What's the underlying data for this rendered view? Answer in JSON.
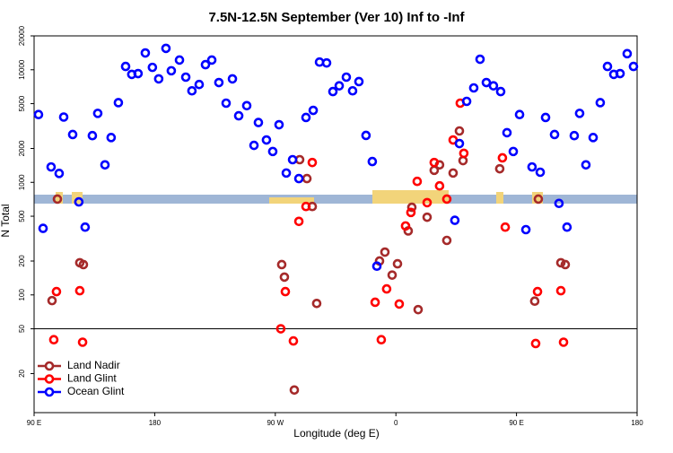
{
  "chart_data": {
    "type": "scatter",
    "title": "7.5N-12.5N September (Ver 10)   Inf to -Inf",
    "x_label": "Longitude (deg E)",
    "y_label": "N Total",
    "xlim": [
      90,
      540
    ],
    "xticks": [
      {
        "value": 90,
        "label": "90 E"
      },
      180,
      {
        "value": 270,
        "label": "90 W"
      },
      {
        "value": 360,
        "label": "0"
      },
      {
        "value": 450,
        "label": "90 E"
      },
      {
        "value": 540,
        "label": "180"
      }
    ],
    "ylim": [
      9,
      20000
    ],
    "y_log": true,
    "yticks": [
      20,
      50,
      100,
      200,
      500,
      1000,
      2000,
      5000,
      10000,
      20000
    ],
    "reference_line": 50,
    "legend": "bottom-left",
    "series": [
      {
        "name": "Land Nadir",
        "color": "#a52a2a",
        "x": [
          103.4,
          107.4,
          124.1,
          126.8,
          274.8,
          276.8,
          284.2,
          288.2,
          293.6,
          297.6,
          300.9,
          347.8,
          351.8,
          357.2,
          361.2,
          369.2,
          371.9,
          376.6,
          383.3,
          388.6,
          392.6,
          398.0,
          402.7,
          407.4,
          410.1,
          437.5,
          463.6,
          466.3,
          483.1,
          486.4
        ],
        "values": [
          89,
          710,
          193,
          186,
          186,
          144,
          14.3,
          1590,
          1080,
          610,
          84,
          200,
          240,
          150,
          189,
          370,
          600,
          74,
          490,
          1280,
          1430,
          305,
          1210,
          2860,
          1560,
          1320,
          88,
          710,
          193,
          186
        ]
      },
      {
        "name": "Land Glint",
        "color": "#ff0000",
        "x": [
          104.7,
          106.7,
          124.1,
          126.2,
          274.1,
          277.5,
          283.5,
          287.6,
          292.9,
          297.6,
          344.5,
          349.1,
          353.1,
          362.5,
          367.2,
          371.2,
          375.9,
          383.3,
          388.6,
          392.6,
          398.0,
          402.7,
          408.0,
          410.7,
          439.5,
          441.6,
          464.3,
          465.7,
          483.1,
          485.1
        ],
        "values": [
          40,
          107,
          109,
          38,
          50,
          107,
          39,
          450,
          610,
          1500,
          86,
          40,
          113,
          83,
          410,
          540,
          1020,
          660,
          1500,
          930,
          710,
          2380,
          5050,
          1810,
          1650,
          400,
          37,
          107,
          109,
          38
        ]
      },
      {
        "name": "Ocean Glint",
        "color": "#0000ff",
        "x": [
          93.3,
          96.7,
          102.7,
          108.7,
          112.1,
          118.8,
          123.4,
          128.1,
          133.5,
          137.5,
          142.9,
          147.5,
          152.9,
          158.3,
          162.9,
          167.6,
          173.0,
          178.3,
          183.0,
          188.4,
          192.4,
          198.5,
          203.2,
          207.8,
          213.2,
          217.9,
          222.6,
          227.9,
          233.3,
          238.0,
          242.7,
          248.7,
          254.1,
          257.4,
          263.4,
          268.1,
          272.8,
          278.2,
          282.9,
          287.6,
          292.9,
          298.3,
          303.0,
          308.3,
          313.0,
          317.7,
          323.0,
          327.7,
          332.4,
          337.7,
          342.4,
          345.8,
          404.0,
          407.4,
          412.8,
          418.1,
          422.8,
          427.5,
          432.8,
          438.2,
          442.9,
          447.6,
          452.3,
          457.0,
          461.6,
          467.7,
          471.7,
          478.4,
          481.7,
          487.7,
          493.1,
          497.1,
          501.8,
          507.2,
          512.5,
          517.9,
          522.6,
          527.3,
          532.6,
          537.3
        ],
        "values": [
          4000,
          390,
          1370,
          1200,
          3800,
          2660,
          670,
          400,
          2600,
          4100,
          1430,
          2500,
          5100,
          10700,
          9100,
          9250,
          14100,
          10500,
          8300,
          15500,
          9800,
          12200,
          8600,
          6500,
          7400,
          11100,
          12200,
          7700,
          5050,
          8300,
          3900,
          4800,
          2130,
          3400,
          2380,
          1880,
          3250,
          1210,
          1590,
          1080,
          3770,
          4360,
          11700,
          11500,
          6400,
          7200,
          8600,
          6500,
          7850,
          2610,
          1530,
          180,
          460,
          2210,
          5240,
          6900,
          12400,
          7700,
          7200,
          6400,
          2760,
          1880,
          4000,
          380,
          1370,
          1230,
          3770,
          2660,
          650,
          400,
          2600,
          4100,
          1430,
          2500,
          5100,
          10700,
          9100,
          9250,
          13900,
          10700
        ]
      }
    ]
  }
}
